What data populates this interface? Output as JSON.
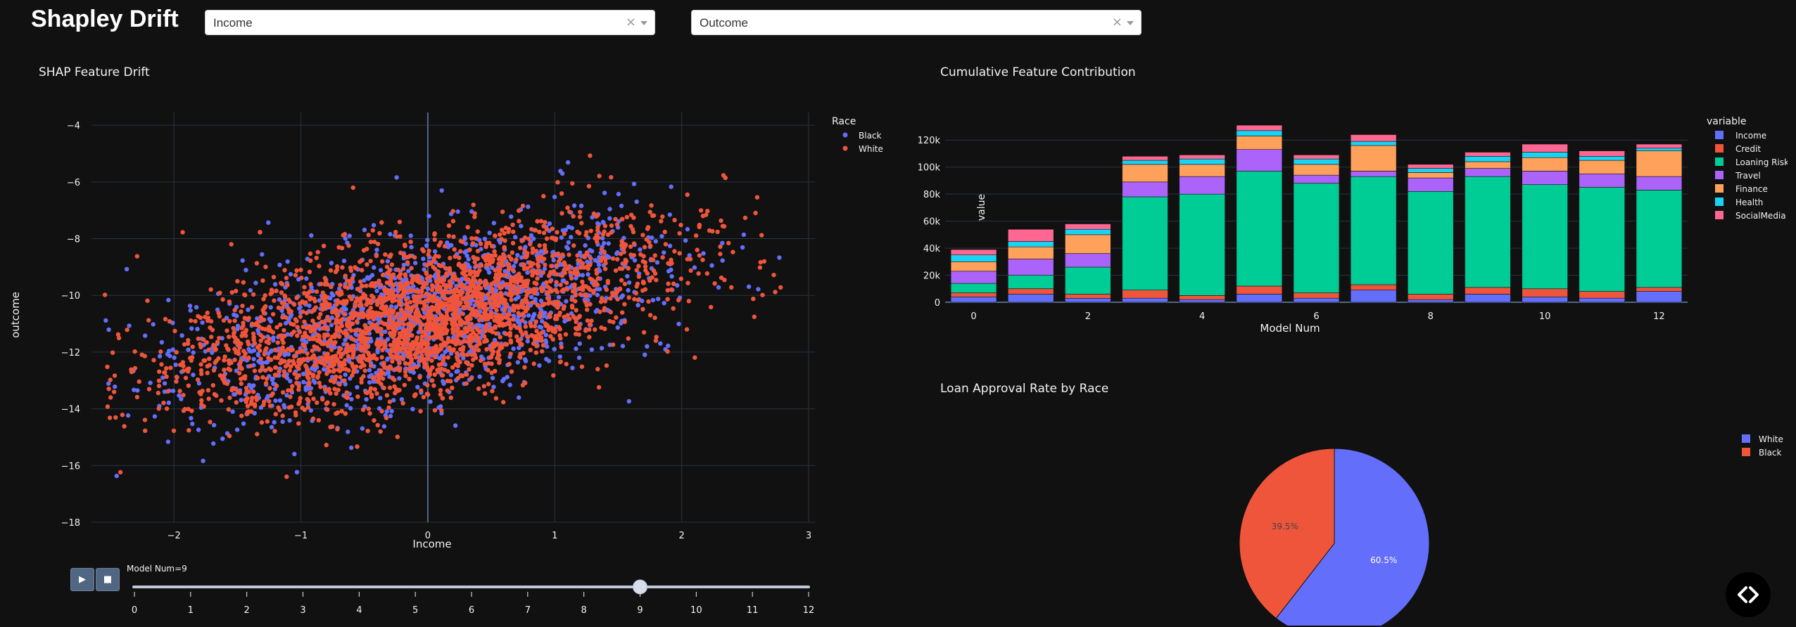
{
  "app": {
    "title": "Shapley Drift"
  },
  "filters": [
    {
      "value": "Income",
      "clear": "×"
    },
    {
      "value": "Outcome",
      "clear": "×"
    }
  ],
  "scatter": {
    "title": "SHAP Feature Drift",
    "xlabel": "Income",
    "ylabel": "outcome",
    "legend_title": "Race",
    "series": [
      {
        "name": "Black",
        "color": "#636efa"
      },
      {
        "name": "White",
        "color": "#ef553b"
      }
    ],
    "xticks": [
      -2,
      -1,
      0,
      1,
      2,
      3
    ],
    "yticks": [
      -4,
      -6,
      -8,
      -10,
      -12,
      -14,
      -16,
      -18
    ]
  },
  "slider": {
    "label": "Model Num=9",
    "value": 9,
    "ticks": [
      "0",
      "1",
      "2",
      "3",
      "4",
      "5",
      "6",
      "7",
      "8",
      "9",
      "10",
      "11",
      "12"
    ],
    "play_icon": "play-icon",
    "stop_icon": "stop-icon",
    "play_glyph": "▶",
    "stop_glyph": "■"
  },
  "bar_chart": {
    "title": "Cumulative Feature Contribution",
    "legend_title": "variable",
    "chart_data": {
      "type": "bar",
      "stacked": true,
      "xlabel": "Model Num",
      "ylabel": "value",
      "ylim": [
        0,
        130000
      ],
      "xticks": [
        "0",
        "2",
        "4",
        "6",
        "8",
        "10",
        "12"
      ],
      "yticks": [
        "0",
        "20k",
        "40k",
        "60k",
        "80k",
        "100k",
        "120k"
      ],
      "categories": [
        0,
        1,
        2,
        3,
        4,
        5,
        6,
        7,
        8,
        9,
        10,
        11,
        12
      ],
      "series": [
        {
          "name": "Income",
          "color": "#636efa",
          "values": [
            4000,
            6000,
            3000,
            3000,
            2000,
            6000,
            3000,
            9000,
            2000,
            6000,
            4000,
            3000,
            8000
          ]
        },
        {
          "name": "Credit",
          "color": "#ef553b",
          "values": [
            3000,
            4000,
            3000,
            6000,
            3000,
            6000,
            4000,
            4000,
            4000,
            5000,
            6000,
            5000,
            3000
          ]
        },
        {
          "name": "Loaning Risk",
          "color": "#00cc96",
          "values": [
            7000,
            10000,
            20000,
            69000,
            75000,
            85000,
            81000,
            80000,
            76000,
            82000,
            77000,
            77000,
            72000
          ]
        },
        {
          "name": "Travel",
          "color": "#ab63fa",
          "values": [
            9000,
            12000,
            10000,
            11000,
            13000,
            16000,
            6000,
            4000,
            10000,
            6000,
            10000,
            10000,
            10000
          ]
        },
        {
          "name": "Finance",
          "color": "#ffa15a",
          "values": [
            7000,
            9000,
            14000,
            13000,
            9000,
            10000,
            8000,
            19000,
            4000,
            5000,
            10000,
            10000,
            19000
          ]
        },
        {
          "name": "Health",
          "color": "#19d3f3",
          "values": [
            5000,
            4000,
            4000,
            3000,
            4000,
            4000,
            4000,
            3000,
            3000,
            4000,
            4000,
            3000,
            2000
          ]
        },
        {
          "name": "SocialMedia",
          "color": "#ff6692",
          "values": [
            4000,
            9000,
            4000,
            3000,
            3000,
            4000,
            3000,
            5000,
            3000,
            3000,
            6000,
            4000,
            3000
          ]
        }
      ]
    }
  },
  "pie_chart": {
    "title": "Loan Approval Rate by Race",
    "chart_data": {
      "type": "pie",
      "labels": [
        "White",
        "Black"
      ],
      "values": [
        60.5,
        39.5
      ],
      "value_labels": [
        "60.5%",
        "39.5%"
      ],
      "colors": [
        "#636efa",
        "#ef553b"
      ]
    }
  },
  "code_toggle": {
    "icon": "code-icon",
    "glyph": "< >"
  }
}
